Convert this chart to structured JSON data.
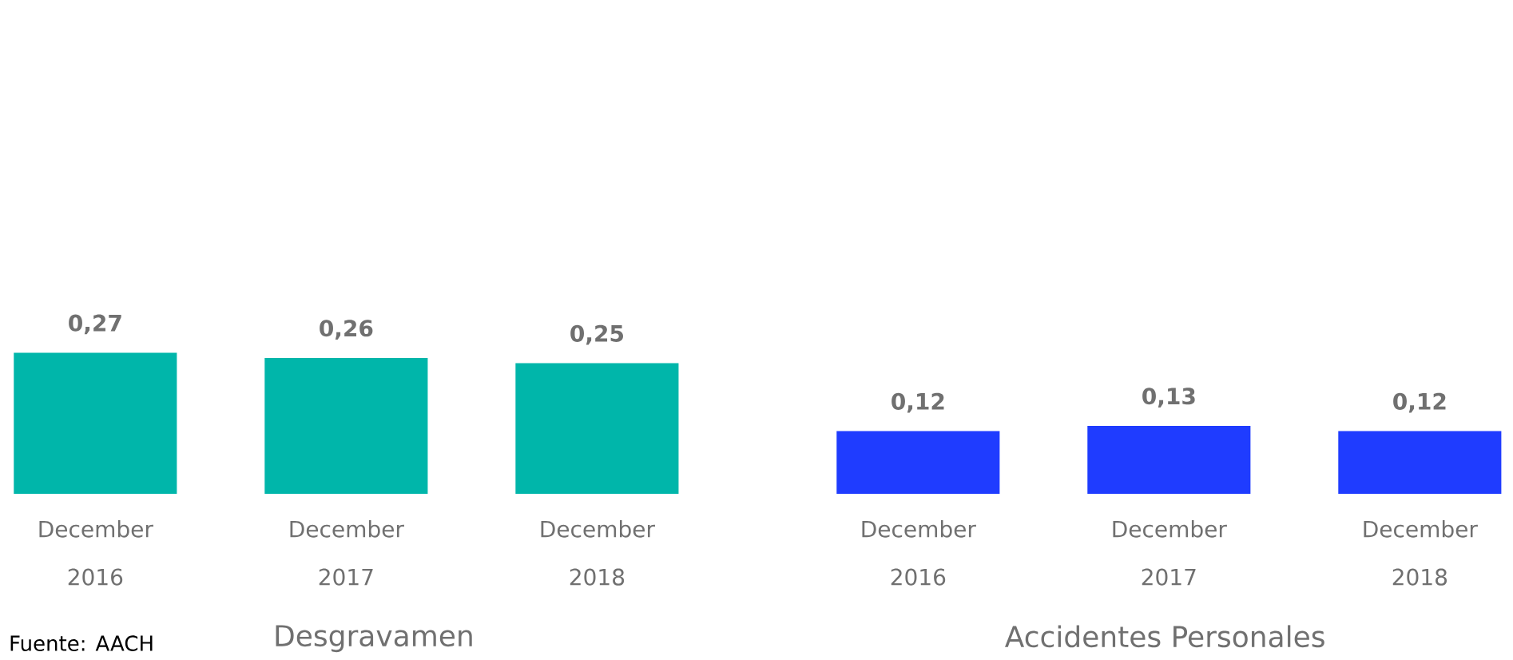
{
  "chart_data": [
    {
      "type": "bar",
      "xlabel": "Desgravamen",
      "categories": [
        "December 2016",
        "December 2017",
        "December 2018"
      ],
      "values": [
        0.27,
        0.26,
        0.25
      ],
      "value_labels": [
        "0,27",
        "0,26",
        "0,25"
      ],
      "color": "#00b6aa",
      "annotations": [
        "Fuente: AACH"
      ]
    },
    {
      "type": "bar",
      "xlabel": "Accidentes Personales",
      "categories": [
        "December 2016",
        "December 2017",
        "December 2018"
      ],
      "values": [
        0.12,
        0.13,
        0.12
      ],
      "value_labels": [
        "0,12",
        "0,13",
        "0,12"
      ],
      "color": "#1f3cff"
    }
  ]
}
